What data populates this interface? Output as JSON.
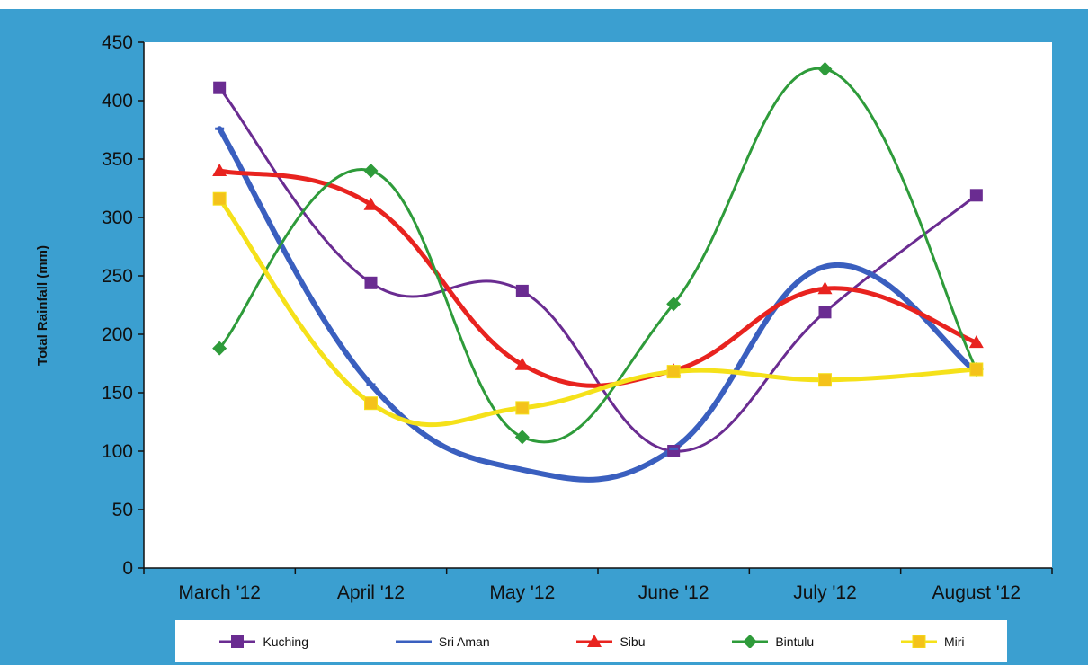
{
  "chart_data": {
    "type": "line",
    "title": "",
    "xlabel": "",
    "ylabel": "Total Rainfall (mm)",
    "ylim": [
      0,
      450
    ],
    "yticks": [
      0,
      50,
      100,
      150,
      200,
      250,
      300,
      350,
      400,
      450
    ],
    "categories": [
      "March '12",
      "April '12",
      "May '12",
      "June '12",
      "July '12",
      "August '12"
    ],
    "legend_position": "bottom",
    "series": [
      {
        "name": "Kuching",
        "color": "#6a2c91",
        "marker": "square",
        "values": [
          411,
          244,
          237,
          100,
          219,
          319
        ]
      },
      {
        "name": "Sri Aman",
        "color": "#3a5fbf",
        "marker": "dash",
        "values": [
          376,
          157,
          84,
          102,
          258,
          168
        ]
      },
      {
        "name": "Sibu",
        "color": "#e8231f",
        "marker": "triangle",
        "values": [
          340,
          311,
          174,
          169,
          239,
          193
        ]
      },
      {
        "name": "Bintulu",
        "color": "#2e9b3a",
        "marker": "diamond",
        "values": [
          188,
          340,
          112,
          226,
          427,
          170
        ]
      },
      {
        "name": "Miri",
        "color": "#f5e11a",
        "marker": "square-gold",
        "values": [
          316,
          141,
          137,
          168,
          161,
          170
        ]
      }
    ]
  }
}
